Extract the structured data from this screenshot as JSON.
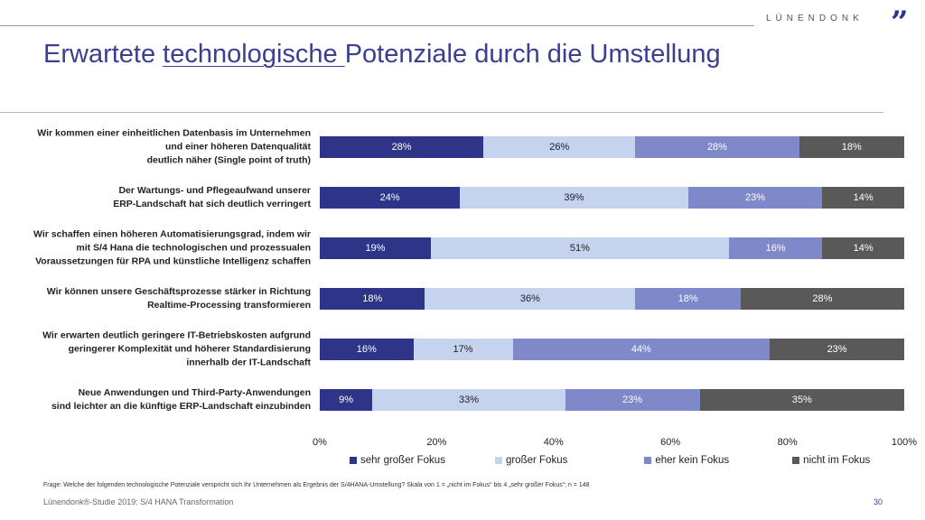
{
  "header": {
    "logo": "LÜNENDONK",
    "title_pre": "Erwartete ",
    "title_underlined": "technologische ",
    "title_post": "Potenziale durch die Umstellung"
  },
  "chart_data": {
    "type": "bar",
    "orientation": "horizontal",
    "stacked": true,
    "categories": [
      "Wir kommen einer einheitlichen Datenbasis im Unternehmen\nund einer höheren Datenqualität\ndeutlich näher (Single point of truth)",
      "Der Wartungs- und Pflegeaufwand unserer\nERP-Landschaft hat sich deutlich verringert",
      "Wir schaffen einen höheren Automatisierungsgrad, indem wir\nmit S/4 Hana die technologischen und prozessualen\nVoraussetzungen für RPA und künstliche Intelligenz schaffen",
      "Wir können unsere Geschäftsprozesse stärker in Richtung\nRealtime-Processing transformieren",
      "Wir erwarten deutlich geringere IT-Betriebskosten aufgrund\ngeringerer Komplexität und höherer Standardisierung\ninnerhalb der IT-Landschaft",
      "Neue Anwendungen und Third-Party-Anwendungen\nsind leichter an die künftige ERP-Landschaft einzubinden"
    ],
    "series": [
      {
        "name": "sehr großer Fokus",
        "color": "#2e3589",
        "text_color": "#ffffff",
        "values": [
          28,
          24,
          19,
          18,
          16,
          9
        ]
      },
      {
        "name": "großer Fokus",
        "color": "#c5d3ef",
        "text_color": "#222222",
        "values": [
          26,
          39,
          51,
          36,
          17,
          33
        ]
      },
      {
        "name": "eher kein Fokus",
        "color": "#7f88c8",
        "text_color": "#ffffff",
        "values": [
          28,
          23,
          16,
          18,
          44,
          23
        ]
      },
      {
        "name": "nicht im Fokus",
        "color": "#595959",
        "text_color": "#ffffff",
        "values": [
          18,
          14,
          14,
          28,
          23,
          35
        ]
      }
    ],
    "xlim": [
      0,
      100
    ],
    "xticks": [
      "0%",
      "20%",
      "40%",
      "60%",
      "80%",
      "100%"
    ],
    "grid": false,
    "legend": "bottom"
  },
  "note": "Frage: Welche der folgenden technologische Potenziale verspricht sich Ihr Unternehmen als Ergebnis der S/4HANA-Umstellung? Skala von 1 = „nicht im Fokus“ bis 4 „sehr großer Fokus“; n = 148",
  "footer": "Lünendonk®-Studie  2019: S/4 HANA  Transformation",
  "page_number": "30"
}
